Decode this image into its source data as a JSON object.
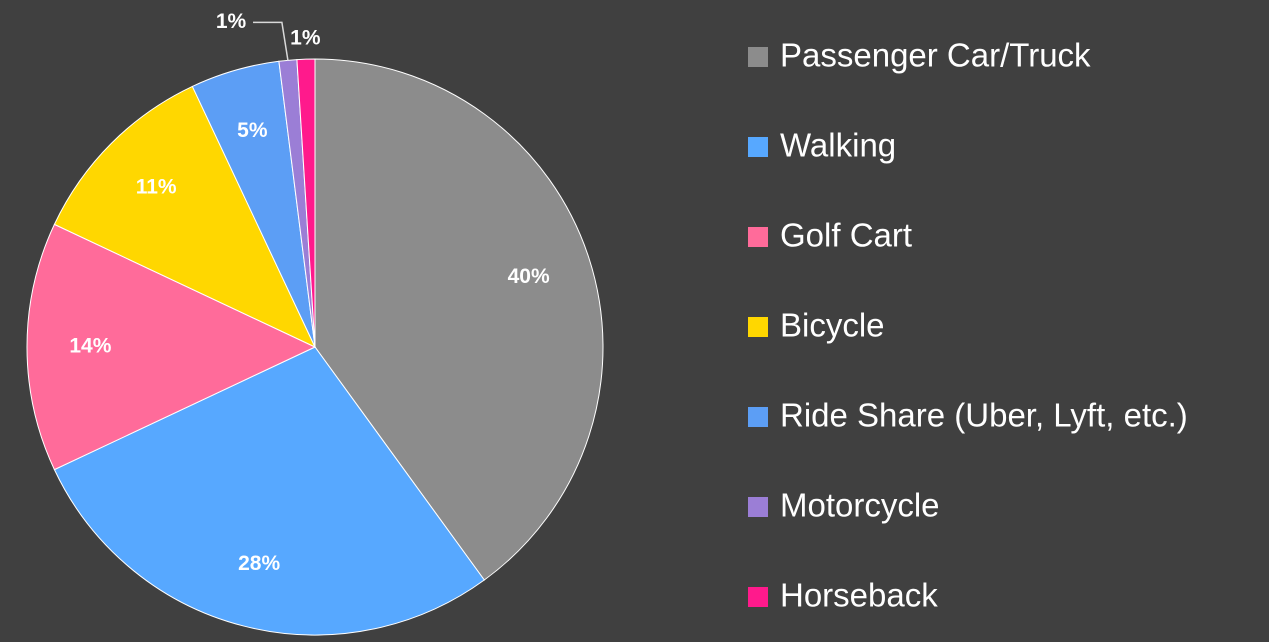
{
  "chart_data": {
    "type": "pie",
    "categories": [
      "Passenger Car/Truck",
      "Walking",
      "Golf Cart",
      "Bicycle",
      "Ride Share (Uber, Lyft, etc.)",
      "Motorcycle",
      "Horseback"
    ],
    "values": [
      40,
      28,
      14,
      11,
      5,
      1,
      1
    ],
    "value_labels": [
      "40%",
      "28%",
      "14%",
      "11%",
      "5%",
      "1%",
      "1%"
    ],
    "colors": [
      "#8c8c8c",
      "#57a8ff",
      "#ff6b9a",
      "#ffd700",
      "#5c9ef5",
      "#9b7ed6",
      "#ff1a8c"
    ],
    "legend": "right"
  }
}
